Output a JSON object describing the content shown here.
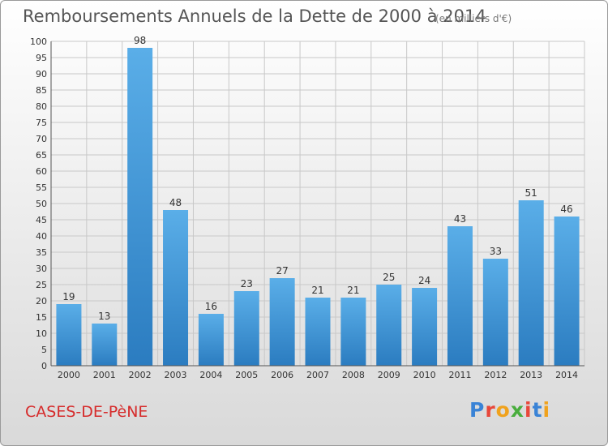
{
  "header": {
    "title": "Remboursements Annuels de la Dette de 2000 à 2014",
    "subtitle": "(en milliers d'€)"
  },
  "footer": {
    "town": "CASES-DE-PèNE",
    "logo_letters": [
      "P",
      "r",
      "o",
      "x",
      "i",
      "t",
      "i"
    ],
    "logo_colors": [
      "#3a83d6",
      "#e8473a",
      "#f0a21d",
      "#49ad3d",
      "#e8473a",
      "#3a83d6",
      "#f0a21d"
    ]
  },
  "chart_data": {
    "type": "bar",
    "title": "Remboursements Annuels de la Dette de 2000 à 2014",
    "categories": [
      "2000",
      "2001",
      "2002",
      "2003",
      "2004",
      "2005",
      "2006",
      "2007",
      "2008",
      "2009",
      "2010",
      "2011",
      "2012",
      "2013",
      "2014"
    ],
    "values": [
      19,
      13,
      98,
      48,
      16,
      23,
      27,
      21,
      21,
      25,
      24,
      43,
      33,
      51,
      46
    ],
    "ylim": [
      0,
      100
    ],
    "yticks": [
      0,
      5,
      10,
      15,
      20,
      25,
      30,
      35,
      40,
      45,
      50,
      55,
      60,
      65,
      70,
      75,
      80,
      85,
      90,
      95,
      100
    ],
    "grid": true,
    "bar_color_top": "#5aaee8",
    "bar_color_bottom": "#2b7cc0"
  }
}
